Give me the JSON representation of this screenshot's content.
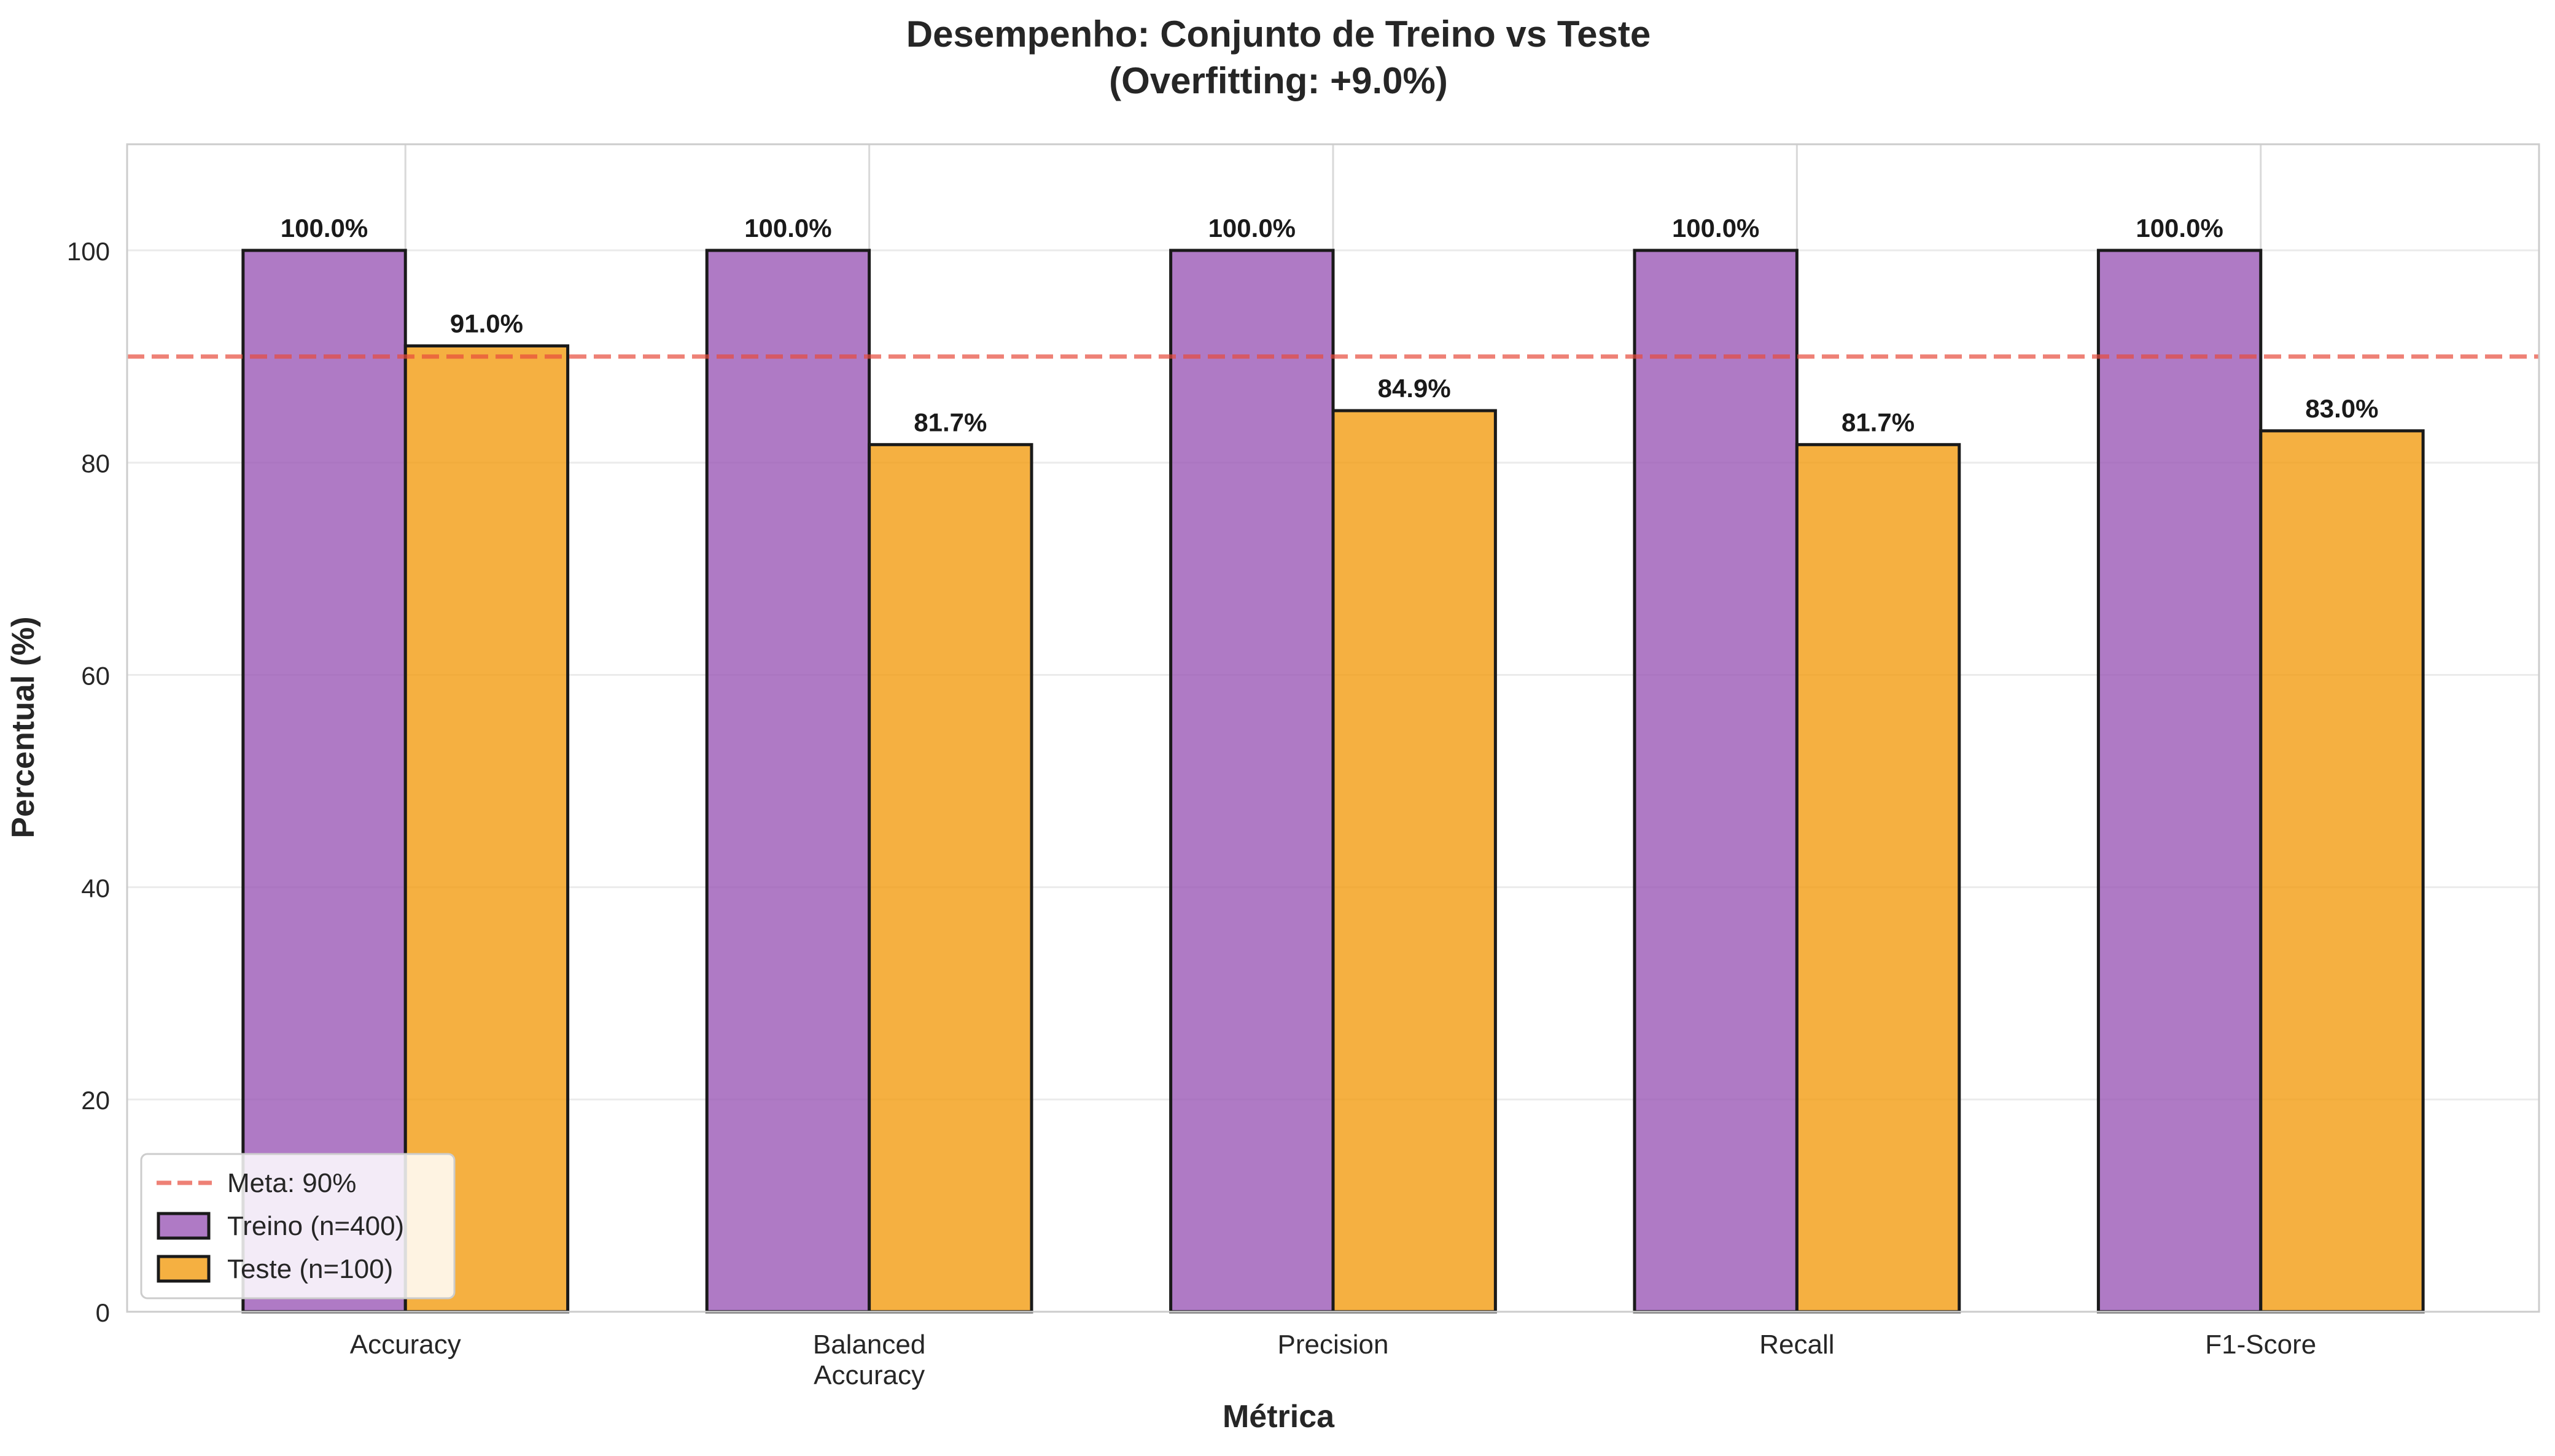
{
  "chart_data": {
    "type": "bar",
    "title_line1": "Desempenho: Conjunto de Treino vs Teste",
    "title_line2": "(Overfitting: +9.0%)",
    "xlabel": "Métrica",
    "ylabel": "Percentual (%)",
    "categories": [
      [
        "Accuracy"
      ],
      [
        "Balanced",
        "Accuracy"
      ],
      [
        "Precision"
      ],
      [
        "Recall"
      ],
      [
        "F1-Score"
      ]
    ],
    "series": [
      {
        "name": "Treino (n=400)",
        "color": "#9b59b6",
        "values": [
          100.0,
          100.0,
          100.0,
          100.0,
          100.0
        ],
        "labels": [
          "100.0%",
          "100.0%",
          "100.0%",
          "100.0%",
          "100.0%"
        ]
      },
      {
        "name": "Teste (n=100)",
        "color": "#f39c12",
        "values": [
          91.0,
          81.7,
          84.9,
          81.7,
          83.0
        ],
        "labels": [
          "91.0%",
          "81.7%",
          "84.9%",
          "81.7%",
          "83.0%"
        ]
      }
    ],
    "reference_line": {
      "label": "Meta: 90%",
      "value": 90,
      "color": "#e74c3c",
      "style": "dashed"
    },
    "ylim": [
      0,
      110
    ],
    "yticks": [
      0,
      20,
      40,
      60,
      80,
      100
    ],
    "grid": true,
    "legend_position": "lower-left"
  }
}
